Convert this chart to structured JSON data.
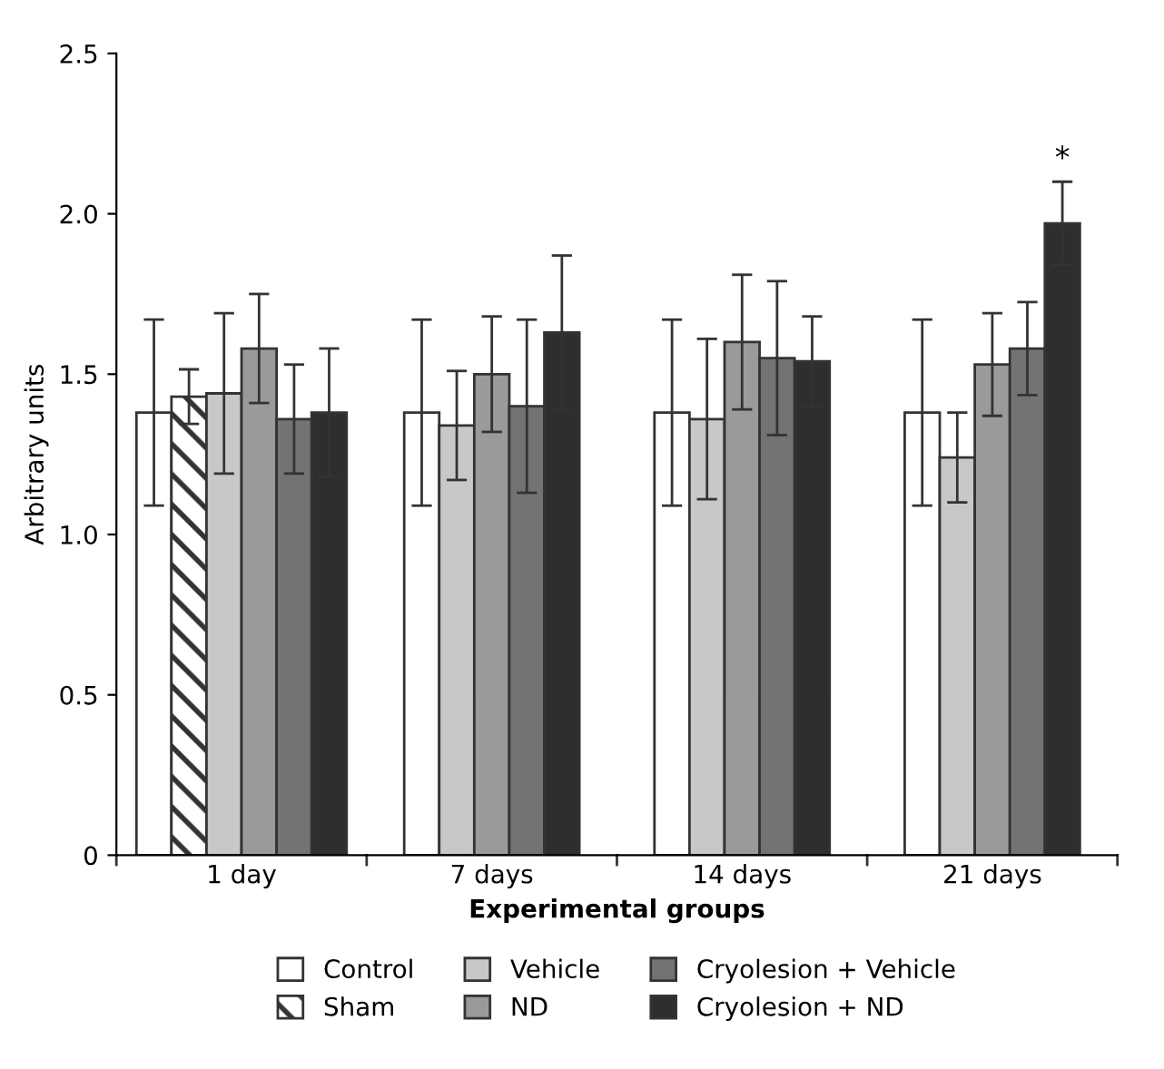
{
  "chart_data": {
    "type": "bar",
    "xlabel": "Experimental groups",
    "ylabel": "Arbitrary units",
    "categories": [
      "1 day",
      "7 days",
      "14 days",
      "21 days"
    ],
    "series": [
      {
        "name": "Control",
        "color": "#ffffff",
        "values": [
          1.38,
          1.38,
          1.38,
          1.38
        ],
        "errors": [
          0.29,
          0.29,
          0.29,
          0.29
        ]
      },
      {
        "name": "Sham",
        "color": "#333333",
        "values": [
          1.43,
          null,
          null,
          null
        ],
        "errors": [
          0.085,
          null,
          null,
          null
        ]
      },
      {
        "name": "Vehicle",
        "color": "#c8c8c8",
        "values": [
          1.44,
          1.34,
          1.36,
          1.24
        ],
        "errors": [
          0.25,
          0.17,
          0.25,
          0.14
        ]
      },
      {
        "name": "ND",
        "color": "#9a9a9a",
        "values": [
          1.58,
          1.5,
          1.6,
          1.53
        ],
        "errors": [
          0.17,
          0.18,
          0.21,
          0.16
        ]
      },
      {
        "name": "Cryolesion + Vehicle",
        "color": "#737373",
        "values": [
          1.36,
          1.4,
          1.55,
          1.58
        ],
        "errors": [
          0.17,
          0.27,
          0.24,
          0.145
        ]
      },
      {
        "name": "Cryolesion + ND",
        "color": "#2e2e2e",
        "values": [
          1.38,
          1.63,
          1.54,
          1.97
        ],
        "errors": [
          0.2,
          0.24,
          0.14,
          0.13
        ]
      }
    ],
    "ylim": [
      0,
      2.5
    ],
    "yticks": [
      0,
      {
        "value": 0.5,
        "label": "0.5"
      },
      {
        "value": 1.0,
        "label": "1.0"
      },
      {
        "value": 1.5,
        "label": "1.5"
      },
      {
        "value": 2.0,
        "label": "2.0"
      },
      {
        "value": 2.5,
        "label": "2.5"
      }
    ],
    "annotations": [
      "*"
    ],
    "legend": "bottom",
    "grid": false
  }
}
